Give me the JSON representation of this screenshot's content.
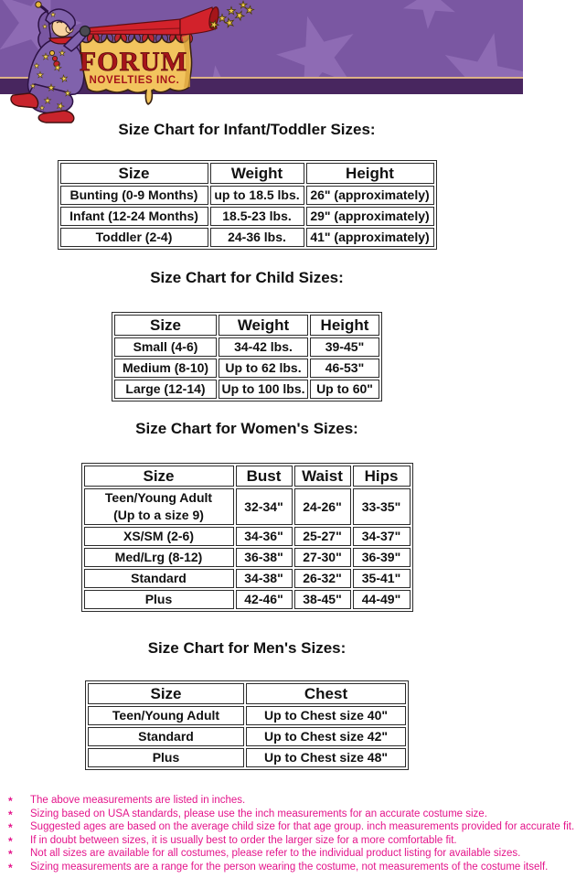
{
  "header": {
    "brand_line1": "FORUM",
    "brand_line2": "NOVELTIES INC.",
    "illustration": "jester-blowing-horn-with-stars"
  },
  "colors": {
    "banner_purple": "#7a57a2",
    "banner_star_purple": "#8e6bb4",
    "banner_dark_stripe": "#48265f",
    "banner_tan_rule": "#ddb286",
    "scroll_gold": "#f2c45e",
    "brand_red": "#a5151a",
    "horn_red": "#d2222b",
    "table_border": "#2b2b2b",
    "notes_pink": "#e4148b"
  },
  "sections": [
    {
      "title": "Size Chart for Infant/Toddler Sizes:",
      "headers": [
        "Size",
        "Weight",
        "Height"
      ],
      "rows": [
        [
          "Bunting (0-9 Months)",
          "up to 18.5 lbs.",
          "26\" (approximately)"
        ],
        [
          "Infant (12-24 Months)",
          "18.5-23 lbs.",
          "29\" (approximately)"
        ],
        [
          "Toddler (2-4)",
          "24-36 lbs.",
          "41\" (approximately)"
        ]
      ]
    },
    {
      "title": "Size Chart for Child Sizes:",
      "headers": [
        "Size",
        "Weight",
        "Height"
      ],
      "rows": [
        [
          "Small (4-6)",
          "34-42 lbs.",
          "39-45\""
        ],
        [
          "Medium (8-10)",
          "Up to 62 lbs.",
          "46-53\""
        ],
        [
          "Large (12-14)",
          "Up to 100 lbs.",
          "Up to 60\""
        ]
      ]
    },
    {
      "title": "Size Chart for Women's Sizes:",
      "headers": [
        "Size",
        "Bust",
        "Waist",
        "Hips"
      ],
      "rows": [
        [
          "Teen/Young Adult\n(Up to a size 9)",
          "32-34\"",
          "24-26\"",
          "33-35\""
        ],
        [
          "XS/SM (2-6)",
          "34-36\"",
          "25-27\"",
          "34-37\""
        ],
        [
          "Med/Lrg (8-12)",
          "36-38\"",
          "27-30\"",
          "36-39\""
        ],
        [
          "Standard",
          "34-38\"",
          "26-32\"",
          "35-41\""
        ],
        [
          "Plus",
          "42-46\"",
          "38-45\"",
          "44-49\""
        ]
      ]
    },
    {
      "title": "Size Chart for Men's Sizes:",
      "headers": [
        "Size",
        "Chest"
      ],
      "rows": [
        [
          "Teen/Young Adult",
          "Up to Chest size 40\""
        ],
        [
          "Standard",
          "Up to Chest size 42\""
        ],
        [
          "Plus",
          "Up to Chest size 48\""
        ]
      ]
    }
  ],
  "notes": {
    "bullet": "*",
    "items": [
      "The above measurements are listed in inches.",
      "Sizing based on USA standards, please use the inch measurements for an accurate costume size.",
      "Suggested ages are based on the average child size for that age group. inch measurements provided for accurate fit.",
      "If in doubt between sizes, it is usually best to order the larger size for a more comfortable fit.",
      "Not all sizes are available for all costumes, please refer to the individual product listing for available sizes.",
      "Sizing measurements are a range for the person wearing the costume, not measurements of the costume itself."
    ]
  }
}
